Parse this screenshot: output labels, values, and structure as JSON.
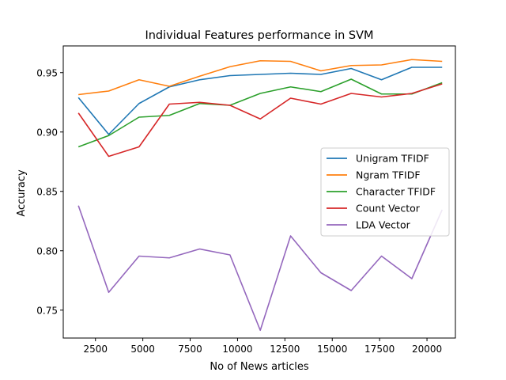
{
  "chart_data": {
    "type": "line",
    "title": "Individual Features performance in SVM",
    "xlabel": "No of News articles",
    "ylabel": "Accuracy",
    "xlim": [
      800,
      21500
    ],
    "ylim": [
      0.7265,
      0.9725
    ],
    "xticks": [
      2500,
      5000,
      7500,
      10000,
      12500,
      15000,
      17500,
      20000
    ],
    "yticks": [
      0.75,
      0.8,
      0.85,
      0.9,
      0.95
    ],
    "x": [
      1600,
      3200,
      4800,
      6400,
      8000,
      9600,
      11200,
      12800,
      14400,
      16000,
      17600,
      19200,
      20800
    ],
    "legend_position": "center-right",
    "grid": false,
    "series": [
      {
        "name": "Unigram TFIDF",
        "color": "#1f77b4",
        "values": [
          0.929,
          0.898,
          0.924,
          0.938,
          0.944,
          0.9475,
          0.9485,
          0.9495,
          0.9485,
          0.9535,
          0.944,
          0.9545,
          0.9545
        ]
      },
      {
        "name": "Ngram TFIDF",
        "color": "#ff7f0e",
        "values": [
          0.9315,
          0.9345,
          0.944,
          0.9385,
          0.947,
          0.955,
          0.96,
          0.9595,
          0.9515,
          0.956,
          0.9565,
          0.961,
          0.9595
        ]
      },
      {
        "name": "Character TFIDF",
        "color": "#2ca02c",
        "values": [
          0.8875,
          0.897,
          0.9125,
          0.914,
          0.924,
          0.9225,
          0.9325,
          0.938,
          0.934,
          0.9445,
          0.932,
          0.932,
          0.9415
        ]
      },
      {
        "name": "Count Vector",
        "color": "#d62728",
        "values": [
          0.916,
          0.8795,
          0.8875,
          0.9235,
          0.925,
          0.9225,
          0.911,
          0.9285,
          0.9235,
          0.9325,
          0.9295,
          0.9325,
          0.9405
        ]
      },
      {
        "name": "LDA Vector",
        "color": "#9467bd",
        "values": [
          0.838,
          0.765,
          0.7955,
          0.794,
          0.8015,
          0.7965,
          0.733,
          0.8125,
          0.7815,
          0.7665,
          0.7955,
          0.7765,
          0.8345
        ]
      }
    ]
  }
}
